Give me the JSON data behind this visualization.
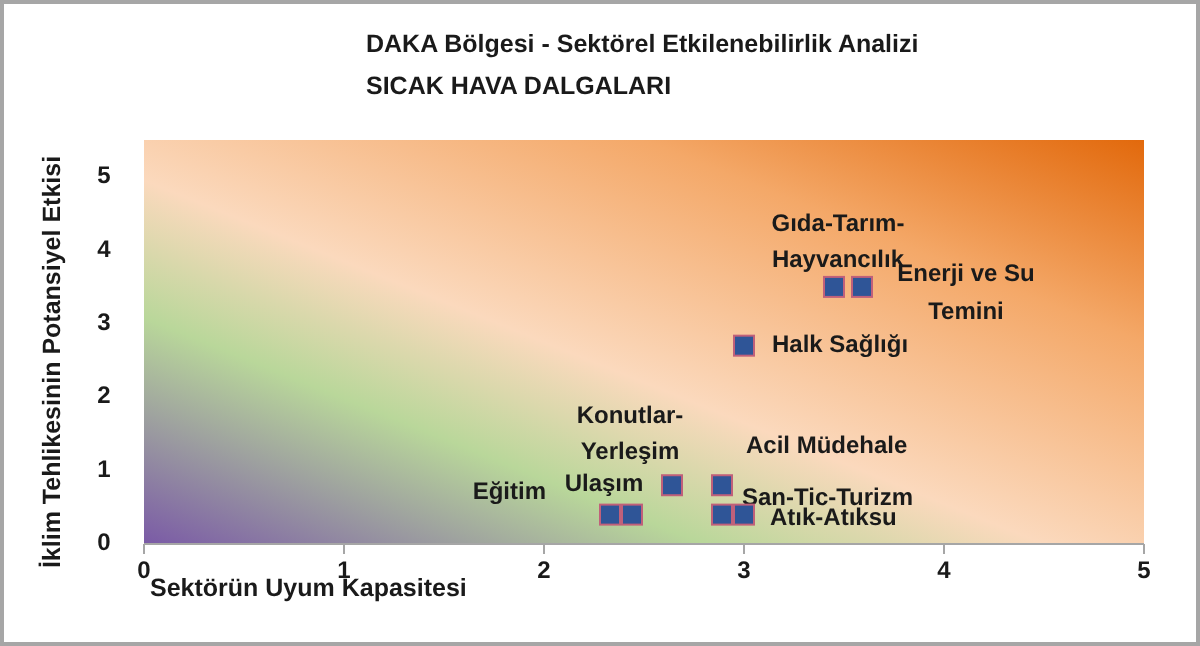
{
  "chart_data": {
    "type": "scatter",
    "title": "DAKA Bölgesi  - Sektörel  Etkilenebilirlik Analizi",
    "subtitle": "SICAK HAVA  DALGALARI",
    "xlabel": "Sektörün Uyum Kapasitesi",
    "ylabel": "İklim Tehlikesinin Potansiyel Etkisi",
    "xlim": [
      0,
      5
    ],
    "ylim": [
      0,
      5.5
    ],
    "xticks": [
      0,
      1,
      2,
      3,
      4,
      5
    ],
    "yticks": [
      0,
      1,
      2,
      3,
      4,
      5
    ],
    "grid": false,
    "marker": "square",
    "series": [
      {
        "name": "Eğitim",
        "color": "#2f5597",
        "x": [
          2.33
        ],
        "values": [
          0.4
        ]
      },
      {
        "name": "Ulaşım",
        "color": "#2f5597",
        "x": [
          2.44
        ],
        "values": [
          0.4
        ]
      },
      {
        "name": "Konutlar-\nYerleşim",
        "color": "#2f5597",
        "x": [
          2.64
        ],
        "values": [
          0.8
        ]
      },
      {
        "name": "Acil Müdehale",
        "color": "#2f5597",
        "x": [
          2.89
        ],
        "values": [
          0.8
        ]
      },
      {
        "name": "San-Tic-Turizm",
        "color": "#2f5597",
        "x": [
          2.89
        ],
        "values": [
          0.4
        ]
      },
      {
        "name": "Atık-Atıksu",
        "color": "#2f5597",
        "x": [
          3.0
        ],
        "values": [
          0.4
        ]
      },
      {
        "name": "Halk Sağlığı",
        "color": "#2f5597",
        "x": [
          3.0
        ],
        "values": [
          2.7
        ]
      },
      {
        "name": "Gıda-Tarım-\nHayvancılık",
        "color": "#2f5597",
        "x": [
          3.45
        ],
        "values": [
          3.5
        ]
      },
      {
        "name": "Enerji ve Su\nTemini",
        "color": "#2f5597",
        "x": [
          3.59
        ],
        "values": [
          3.5
        ]
      }
    ]
  }
}
